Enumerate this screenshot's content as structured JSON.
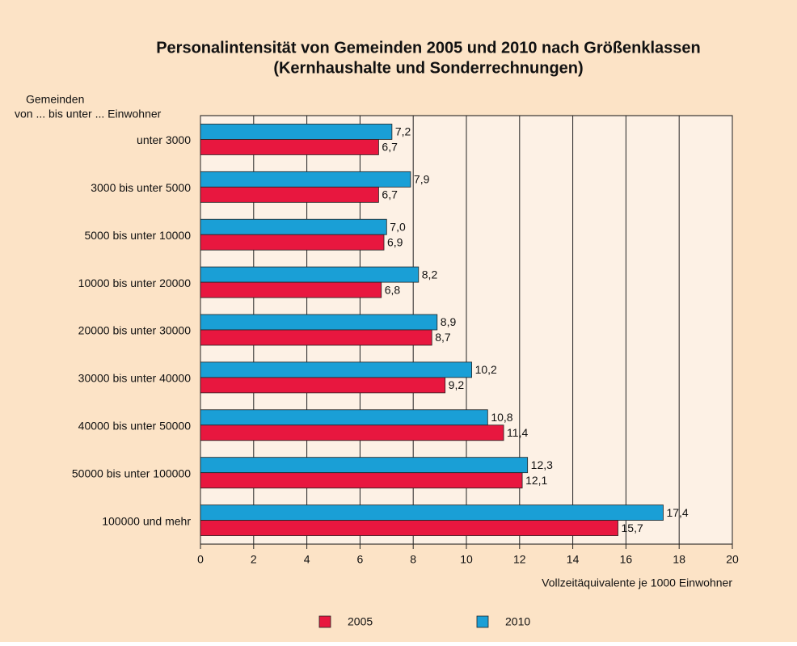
{
  "chart_data": {
    "type": "hbar",
    "title": "Personalintensität von Gemeinden 2005 und 2010 nach Größenklassen",
    "subtitle": "(Kernhaushalte und Sonderrechnungen)",
    "y_label": [
      "Gemeinden",
      "von ... bis unter ... Einwohner"
    ],
    "x_label": "Vollzeitäquivalente je 1000 Einwohner",
    "categories": [
      "unter 3000",
      "3000 bis unter 5000",
      "5000 bis unter 10000",
      "10000 bis unter 20000",
      "20000 bis unter 30000",
      "30000 bis unter 40000",
      "40000 bis unter 50000",
      "50000 bis unter 100000",
      "100000 und mehr"
    ],
    "series": [
      {
        "name": "2005",
        "color": "#e8173f",
        "values": [
          6.7,
          6.7,
          6.9,
          6.8,
          8.7,
          9.2,
          11.4,
          12.1,
          15.7
        ],
        "value_labels": [
          "6,7",
          "6,7",
          "6,9",
          "6,8",
          "8,7",
          "9,2",
          "11,4",
          "12,1",
          "15,7"
        ]
      },
      {
        "name": "2010",
        "color": "#1a9fd6",
        "values": [
          7.2,
          7.9,
          7.0,
          8.2,
          8.9,
          10.2,
          10.8,
          12.3,
          17.4
        ],
        "value_labels": [
          "7,2",
          "7,9",
          "7,0",
          "8,2",
          "8,9",
          "10,2",
          "10,8",
          "12,3",
          "17,4"
        ]
      }
    ],
    "xlim": [
      0,
      20
    ],
    "xticks": [
      0,
      2,
      4,
      6,
      8,
      10,
      12,
      14,
      16,
      18,
      20
    ],
    "grid": true
  }
}
